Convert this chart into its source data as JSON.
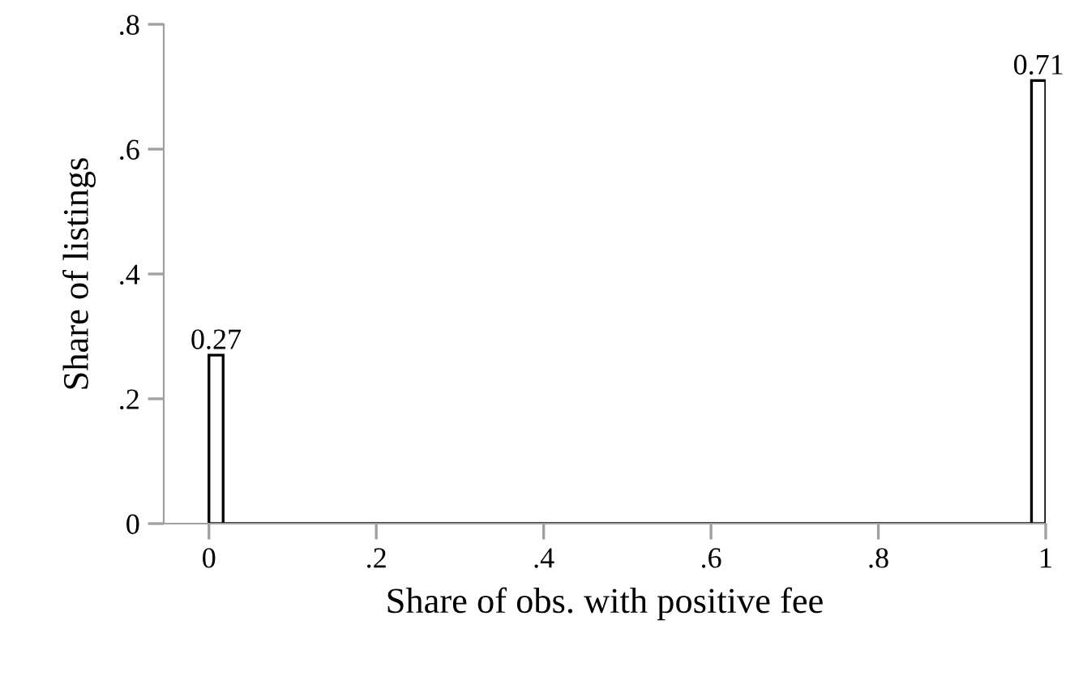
{
  "chart_data": {
    "type": "histogram",
    "xlabel": "Share of obs. with positive fee",
    "ylabel": "Share of listings",
    "bins": [
      0,
      0.017,
      0.983,
      1
    ],
    "values": [
      0.27,
      0,
      0.71
    ],
    "value_labels": [
      "0.27",
      null,
      "0.71"
    ],
    "color": "#ffffff",
    "xlim": [
      -0.054,
      1
    ],
    "ylim": [
      0,
      0.8
    ],
    "xticks": [
      0,
      {
        "value": 0.2,
        "label": ".2"
      },
      {
        "value": 0.4,
        "label": ".4"
      },
      {
        "value": 0.6,
        "label": ".6"
      },
      {
        "value": 0.8,
        "label": ".8"
      },
      1
    ],
    "yticks": [
      0,
      {
        "value": 0.2,
        "label": ".2"
      },
      {
        "value": 0.4,
        "label": ".4"
      },
      {
        "value": 0.6,
        "label": ".6"
      },
      {
        "value": 0.8,
        "label": ".8"
      }
    ],
    "grid": false
  }
}
